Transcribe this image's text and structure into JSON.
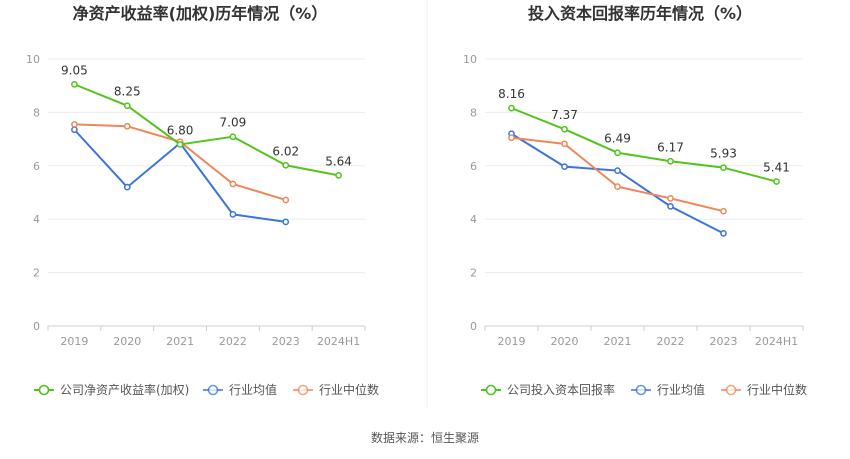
{
  "source_text": "数据来源：恒生聚源",
  "chart_data": [
    {
      "type": "line",
      "title": "净资产收益率(加权)历年情况（%）",
      "categories": [
        "2019",
        "2020",
        "2021",
        "2022",
        "2023",
        "2024H1"
      ],
      "ylim": [
        0,
        10
      ],
      "yticks": [
        0,
        2,
        4,
        6,
        8,
        10
      ],
      "grid": true,
      "legend_position": "bottom",
      "series": [
        {
          "name": "公司净资产收益率(加权)",
          "color": "#52c41a",
          "values": [
            9.05,
            8.25,
            6.8,
            7.09,
            6.02,
            5.64
          ],
          "labels": [
            "9.05",
            "8.25",
            "6.80",
            "7.09",
            "6.02",
            "5.64"
          ]
        },
        {
          "name": "行业均值",
          "color": "#3b74db",
          "values": [
            7.35,
            5.2,
            6.85,
            4.18,
            3.9,
            null
          ],
          "labels": []
        },
        {
          "name": "行业中位数",
          "color": "#f0875a",
          "values": [
            7.55,
            7.48,
            6.9,
            5.32,
            4.72,
            null
          ],
          "labels": []
        }
      ]
    },
    {
      "type": "line",
      "title": "投入资本回报率历年情况（%）",
      "categories": [
        "2019",
        "2020",
        "2021",
        "2022",
        "2023",
        "2024H1"
      ],
      "ylim": [
        0,
        10
      ],
      "yticks": [
        0,
        2,
        4,
        6,
        8,
        10
      ],
      "grid": true,
      "legend_position": "bottom",
      "series": [
        {
          "name": "公司投入资本回报率",
          "color": "#52c41a",
          "values": [
            8.16,
            7.37,
            6.49,
            6.17,
            5.93,
            5.41
          ],
          "labels": [
            "8.16",
            "7.37",
            "6.49",
            "6.17",
            "5.93",
            "5.41"
          ]
        },
        {
          "name": "行业均值",
          "color": "#3b74db",
          "values": [
            7.2,
            5.97,
            5.82,
            4.48,
            3.47,
            null
          ],
          "labels": []
        },
        {
          "name": "行业中位数",
          "color": "#f0875a",
          "values": [
            7.05,
            6.82,
            5.22,
            4.78,
            4.3,
            null
          ],
          "labels": []
        }
      ]
    }
  ]
}
